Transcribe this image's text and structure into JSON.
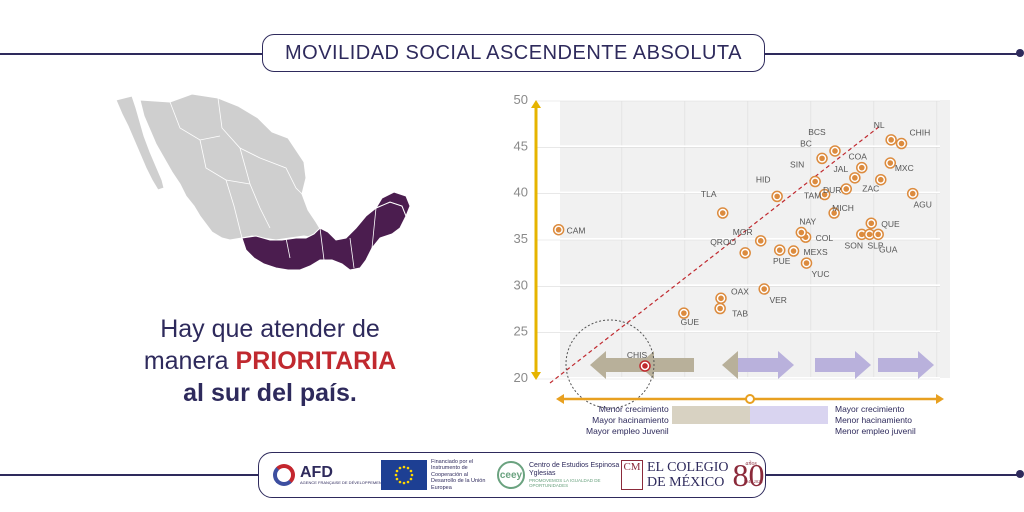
{
  "header": {
    "title": "MOVILIDAD SOCIAL ASCENDENTE ABSOLUTA"
  },
  "message": {
    "line1": "Hay que atender de",
    "line2_pre": "manera ",
    "line2_highlight": "PRIORITARIA",
    "line3": "al sur del país."
  },
  "colors": {
    "navy": "#2e2a5c",
    "purple": "#4b1d4f",
    "orange": "#dc8b3e",
    "gray": "#cfcfcf",
    "highlight": "#c0292f",
    "olive": "#b8b09a",
    "lavender": "#b9b1dc"
  },
  "map": {
    "highlighted_region": "south-southeast Mexico"
  },
  "chart_data": {
    "type": "scatter",
    "title": "",
    "xlabel": "",
    "ylabel": "",
    "ylim": [
      20,
      50
    ],
    "yticks": [
      20,
      25,
      30,
      35,
      40,
      45,
      50
    ],
    "grid": true,
    "highlighted_point": "CHIS",
    "x_axis_left_labels": [
      "Menor crecimiento",
      "Mayor hacinamiento",
      "Mayor empleo Juvenil"
    ],
    "x_axis_right_labels": [
      "Mayor crecimiento",
      "Menor hacinamiento",
      "Menor empleo juvenil"
    ],
    "points": [
      {
        "label": "CAM",
        "x": 1,
        "y": 36
      },
      {
        "label": "CHIS",
        "x": 11,
        "y": 21.3
      },
      {
        "label": "GUE",
        "x": 15.5,
        "y": 27.0
      },
      {
        "label": "OAX",
        "x": 19.8,
        "y": 28.6
      },
      {
        "label": "TAB",
        "x": 19.7,
        "y": 27.5
      },
      {
        "label": "TLA",
        "x": 20,
        "y": 37.8
      },
      {
        "label": "QROO",
        "x": 22.6,
        "y": 33.5
      },
      {
        "label": "MOR",
        "x": 24.4,
        "y": 34.8
      },
      {
        "label": "VER",
        "x": 24.8,
        "y": 29.6
      },
      {
        "label": "PUE",
        "x": 26.6,
        "y": 33.8
      },
      {
        "label": "HID",
        "x": 26.3,
        "y": 39.6
      },
      {
        "label": "MEXS",
        "x": 28.2,
        "y": 33.7
      },
      {
        "label": "YUC",
        "x": 29.7,
        "y": 32.4
      },
      {
        "label": "COL",
        "x": 29.6,
        "y": 35.2
      },
      {
        "label": "NAY",
        "x": 29.1,
        "y": 35.7
      },
      {
        "label": "TAM",
        "x": 31.8,
        "y": 39.8
      },
      {
        "label": "SIN",
        "x": 30.7,
        "y": 41.2
      },
      {
        "label": "MICH",
        "x": 32.9,
        "y": 37.8
      },
      {
        "label": "BC",
        "x": 31.5,
        "y": 43.7
      },
      {
        "label": "BCS",
        "x": 33.0,
        "y": 44.5
      },
      {
        "label": "DUR",
        "x": 34.3,
        "y": 40.4
      },
      {
        "label": "JAL",
        "x": 35.3,
        "y": 41.6
      },
      {
        "label": "COA",
        "x": 36.1,
        "y": 42.7
      },
      {
        "label": "QUE",
        "x": 37.2,
        "y": 36.7
      },
      {
        "label": "SON",
        "x": 36.1,
        "y": 35.5
      },
      {
        "label": "SLP",
        "x": 37.0,
        "y": 35.5
      },
      {
        "label": "GUA",
        "x": 38.0,
        "y": 35.5
      },
      {
        "label": "ZAC",
        "x": 38.3,
        "y": 41.4
      },
      {
        "label": "MXC",
        "x": 39.4,
        "y": 43.2
      },
      {
        "label": "NL",
        "x": 39.5,
        "y": 45.7
      },
      {
        "label": "CHIH",
        "x": 40.7,
        "y": 45.3
      },
      {
        "label": "AGU",
        "x": 42.0,
        "y": 39.9
      }
    ]
  },
  "footer": {
    "afd": {
      "name": "AFD",
      "sub": "AGENCE FRANÇAISE DE DÉVELOPPEMENT"
    },
    "eu": {
      "text": "Financiado por el Instrumento de Cooperación al Desarrollo de la Unión Europea"
    },
    "ceey": {
      "mark": "ceey",
      "name": "Centro de Estudios Espinosa Yglesias",
      "tagline": "PROMOVEMOS LA IGUALDAD DE OPORTUNIDADES"
    },
    "colmex": {
      "mark": "CM",
      "line1": "EL COLEGIO",
      "line2": "DE MÉXICO",
      "number": "80",
      "anos": "años",
      "years": "1940 2020"
    }
  }
}
